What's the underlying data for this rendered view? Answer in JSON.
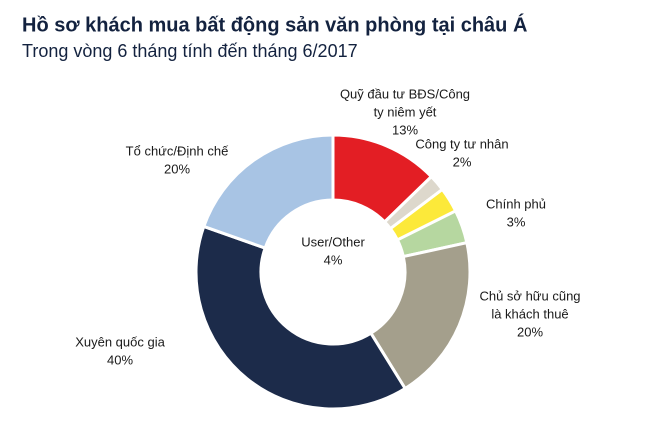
{
  "chart_data": {
    "type": "donut",
    "title": "Hồ sơ khách mua bất động sản văn phòng tại châu Á",
    "subtitle": "Trong vòng 6 tháng tính đến tháng 6/2017",
    "categories": [
      [
        "Quỹ đầu tư BĐS/Công",
        "ty niêm yết"
      ],
      [
        "Công ty tư nhân"
      ],
      [
        "Chính phủ"
      ],
      [
        "User/Other"
      ],
      [
        "Chủ sở hữu cũng",
        "là khách thuê"
      ],
      [
        "Xuyên quốc gia"
      ],
      [
        "Tổ chức/Định chế"
      ]
    ],
    "values": [
      13,
      2,
      3,
      4,
      20,
      40,
      20
    ],
    "value_labels": [
      "13%",
      "2%",
      "3%",
      "4%",
      "20%",
      "40%",
      "20%"
    ],
    "colors": [
      "#e31e24",
      "#ddd8cc",
      "#fce93a",
      "#b6d7a0",
      "#a49f8c",
      "#1c2b4a",
      "#a8c4e4"
    ]
  }
}
